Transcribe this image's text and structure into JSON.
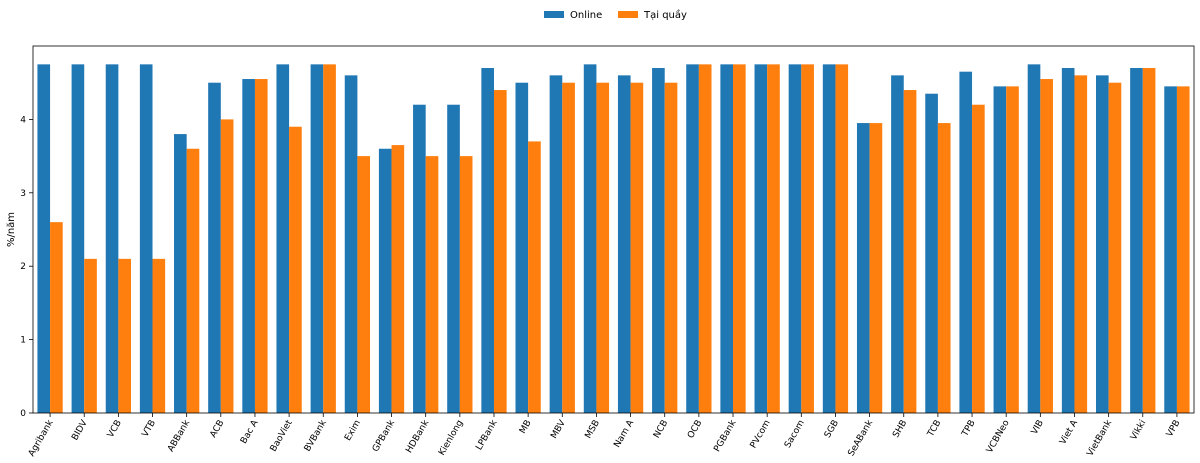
{
  "chart_data": {
    "type": "bar",
    "title": "",
    "xlabel": "",
    "ylabel": "%/năm",
    "ylim": [
      0,
      5
    ],
    "yticks": [
      0,
      1,
      2,
      3,
      4
    ],
    "grid": false,
    "legend_position": "top-center",
    "categories": [
      "Agribank",
      "BIDV",
      "VCB",
      "VTB",
      "ABBank",
      "ACB",
      "Bac A",
      "BaoViet",
      "BVBank",
      "Exim",
      "GPBank",
      "HDBank",
      "Kienlong",
      "LPBank",
      "MB",
      "MBV",
      "MSB",
      "Nam A",
      "NCB",
      "OCB",
      "PGBank",
      "PVcom",
      "Sacom",
      "SGB",
      "SeABank",
      "SHB",
      "TCB",
      "TPB",
      "VCBNeo",
      "VIB",
      "Viet A",
      "VietBank",
      "Vikki",
      "VPB"
    ],
    "series": [
      {
        "name": "Online",
        "color": "#1f77b4",
        "values": [
          4.75,
          4.75,
          4.75,
          4.75,
          3.8,
          4.5,
          4.55,
          4.75,
          4.75,
          4.6,
          3.6,
          4.2,
          4.2,
          4.7,
          4.5,
          4.6,
          4.75,
          4.6,
          4.7,
          4.75,
          4.75,
          4.75,
          4.75,
          4.75,
          3.95,
          4.6,
          4.35,
          4.65,
          4.45,
          4.75,
          4.7,
          4.6,
          4.7,
          4.45
        ]
      },
      {
        "name": "Tại quầy",
        "color": "#ff7f0e",
        "values": [
          2.6,
          2.1,
          2.1,
          2.1,
          3.6,
          4.0,
          4.55,
          3.9,
          4.75,
          3.5,
          3.65,
          3.5,
          3.5,
          4.4,
          3.7,
          4.5,
          4.5,
          4.5,
          4.5,
          4.75,
          4.75,
          4.75,
          4.75,
          4.75,
          3.95,
          4.4,
          3.95,
          4.2,
          4.45,
          4.55,
          4.6,
          4.5,
          4.7,
          4.45
        ]
      }
    ]
  }
}
